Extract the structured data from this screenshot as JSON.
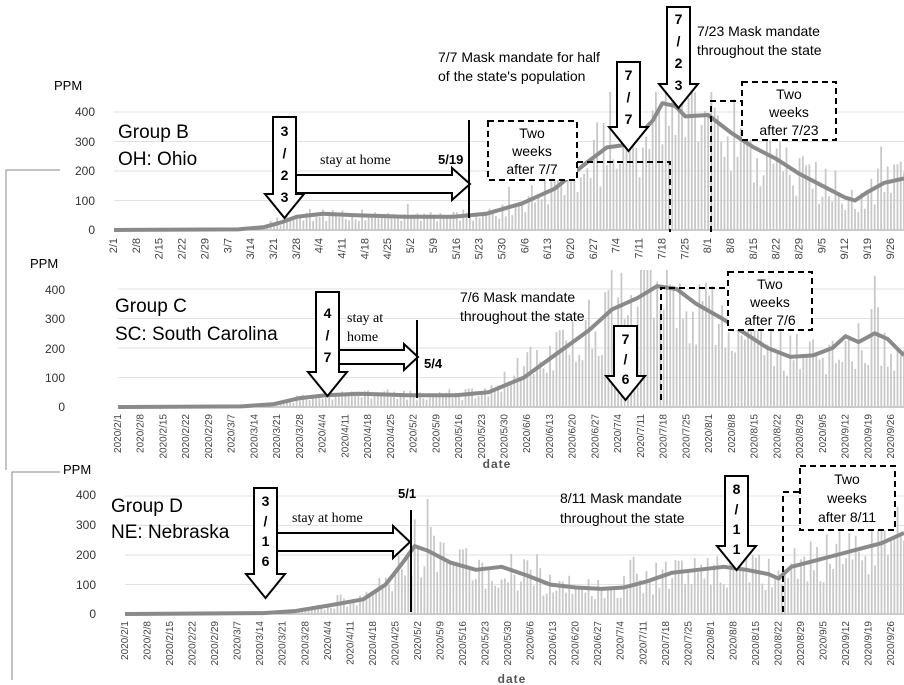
{
  "chart_data": [
    {
      "type": "bar",
      "group_label": "Group B",
      "state_label": "OH: Ohio",
      "ylabel": "PPM",
      "xlabel": "",
      "ylim": [
        0,
        450
      ],
      "yticks": [
        0,
        100,
        200,
        300,
        400
      ],
      "date_start": "2020/2/1",
      "date_end": "2020/9/30",
      "xtick_labels": [
        "2/1",
        "2/8",
        "2/15",
        "2/22",
        "2/29",
        "3/7",
        "3/14",
        "3/21",
        "3/28",
        "4/4",
        "4/11",
        "4/18",
        "4/25",
        "5/2",
        "5/9",
        "5/16",
        "5/23",
        "5/30",
        "6/6",
        "6/13",
        "6/20",
        "6/27",
        "7/4",
        "7/11",
        "7/18",
        "7/25",
        "8/1",
        "8/8",
        "8/15",
        "8/22",
        "8/29",
        "9/5",
        "9/12",
        "9/19",
        "9/26"
      ],
      "trend_points": [
        [
          "2020/2/1",
          0
        ],
        [
          "2020/3/10",
          2
        ],
        [
          "2020/3/18",
          10
        ],
        [
          "2020/3/23",
          25
        ],
        [
          "2020/3/28",
          45
        ],
        [
          "2020/4/5",
          55
        ],
        [
          "2020/4/15",
          50
        ],
        [
          "2020/4/30",
          45
        ],
        [
          "2020/5/15",
          45
        ],
        [
          "2020/5/25",
          55
        ],
        [
          "2020/6/5",
          90
        ],
        [
          "2020/6/15",
          140
        ],
        [
          "2020/6/25",
          230
        ],
        [
          "2020/7/1",
          280
        ],
        [
          "2020/7/8",
          290
        ],
        [
          "2020/7/15",
          370
        ],
        [
          "2020/7/18",
          430
        ],
        [
          "2020/7/22",
          420
        ],
        [
          "2020/7/25",
          385
        ],
        [
          "2020/8/1",
          390
        ],
        [
          "2020/8/8",
          330
        ],
        [
          "2020/8/15",
          280
        ],
        [
          "2020/8/22",
          240
        ],
        [
          "2020/8/29",
          190
        ],
        [
          "2020/9/5",
          150
        ],
        [
          "2020/9/12",
          110
        ],
        [
          "2020/9/15",
          100
        ],
        [
          "2020/9/19",
          130
        ],
        [
          "2020/9/24",
          160
        ],
        [
          "2020/9/30",
          175
        ]
      ],
      "events": [
        {
          "date": "2020/3/23",
          "arrow_text": [
            "3",
            "/",
            "2",
            "3"
          ]
        },
        {
          "date": "2020/7/7",
          "arrow_text": [
            "7",
            "/",
            "7"
          ],
          "text_lines": [
            "7/7 Mask mandate for half",
            "of the state's population"
          ]
        },
        {
          "date": "2020/7/23",
          "arrow_text": [
            "7",
            "/",
            "2",
            "3"
          ],
          "text_lines": [
            "7/23 Mask mandate",
            "throughout the state"
          ]
        }
      ],
      "stay_at_home": {
        "label": "stay at home",
        "end_label": "5/19",
        "end_date": "2020/5/19"
      },
      "boxes": [
        {
          "lines": [
            "Two",
            "weeks",
            "after 7/7"
          ]
        },
        {
          "lines": [
            "Two",
            "weeks",
            "after 7/23"
          ]
        }
      ]
    },
    {
      "type": "bar",
      "group_label": "Group C",
      "state_label": "SC: South Carolina",
      "ylabel": "PPM",
      "xlabel": "date",
      "ylim": [
        0,
        450
      ],
      "yticks": [
        0,
        100,
        200,
        300,
        400
      ],
      "date_start": "2020/2/1",
      "date_end": "2020/9/30",
      "xtick_labels": [
        "2020/2/1",
        "2020/2/8",
        "2020/2/15",
        "2020/2/22",
        "2020/2/29",
        "2020/3/7",
        "2020/3/14",
        "2020/3/21",
        "2020/3/28",
        "2020/4/4",
        "2020/4/11",
        "2020/4/18",
        "2020/4/25",
        "2020/5/2",
        "2020/5/9",
        "2020/5/16",
        "2020/5/23",
        "2020/5/30",
        "2020/6/6",
        "2020/6/13",
        "2020/6/20",
        "2020/6/27",
        "2020/7/4",
        "2020/7/11",
        "2020/7/18",
        "2020/7/25",
        "2020/8/1",
        "2020/8/8",
        "2020/8/15",
        "2020/8/22",
        "2020/8/29",
        "2020/9/5",
        "2020/9/12",
        "2020/9/19",
        "2020/9/26"
      ],
      "trend_points": [
        [
          "2020/2/1",
          0
        ],
        [
          "2020/3/10",
          2
        ],
        [
          "2020/3/20",
          10
        ],
        [
          "2020/3/28",
          30
        ],
        [
          "2020/4/5",
          40
        ],
        [
          "2020/4/15",
          45
        ],
        [
          "2020/4/30",
          40
        ],
        [
          "2020/5/15",
          40
        ],
        [
          "2020/5/25",
          50
        ],
        [
          "2020/6/5",
          100
        ],
        [
          "2020/6/15",
          180
        ],
        [
          "2020/6/25",
          260
        ],
        [
          "2020/7/2",
          330
        ],
        [
          "2020/7/10",
          370
        ],
        [
          "2020/7/16",
          410
        ],
        [
          "2020/7/22",
          400
        ],
        [
          "2020/7/28",
          350
        ],
        [
          "2020/8/5",
          300
        ],
        [
          "2020/8/12",
          250
        ],
        [
          "2020/8/19",
          200
        ],
        [
          "2020/8/26",
          170
        ],
        [
          "2020/9/2",
          175
        ],
        [
          "2020/9/8",
          200
        ],
        [
          "2020/9/12",
          240
        ],
        [
          "2020/9/16",
          220
        ],
        [
          "2020/9/21",
          250
        ],
        [
          "2020/9/25",
          230
        ],
        [
          "2020/9/30",
          175
        ]
      ],
      "events": [
        {
          "date": "2020/4/7",
          "arrow_text": [
            "4",
            "/",
            "7"
          ]
        },
        {
          "date": "2020/7/6",
          "arrow_text": [
            "7",
            "/",
            "6"
          ],
          "text_lines": [
            "7/6 Mask mandate",
            "throughout the state"
          ]
        }
      ],
      "stay_at_home": {
        "label": "stay at home",
        "end_label": "5/4",
        "end_date": "2020/5/4"
      },
      "boxes": [
        {
          "lines": [
            "Two",
            "weeks",
            "after 7/6"
          ]
        }
      ]
    },
    {
      "type": "bar",
      "group_label": "Group D",
      "state_label": "NE: Nebraska",
      "ylabel": "PPM",
      "xlabel": "date",
      "ylim": [
        0,
        450
      ],
      "yticks": [
        0,
        100,
        200,
        300,
        400
      ],
      "date_start": "2020/2/1",
      "date_end": "2020/9/30",
      "xtick_labels": [
        "2020/2/1",
        "2020/2/8",
        "2020/2/15",
        "2020/2/22",
        "2020/2/29",
        "2020/3/7",
        "2020/3/14",
        "2020/3/21",
        "2020/3/28",
        "2020/4/4",
        "2020/4/11",
        "2020/4/18",
        "2020/4/25",
        "2020/5/2",
        "2020/5/9",
        "2020/5/16",
        "2020/5/23",
        "2020/5/30",
        "2020/6/6",
        "2020/6/13",
        "2020/6/20",
        "2020/6/27",
        "2020/7/4",
        "2020/7/11",
        "2020/7/18",
        "2020/7/25",
        "2020/8/1",
        "2020/8/8",
        "2020/8/15",
        "2020/8/22",
        "2020/8/29",
        "2020/9/5",
        "2020/9/12",
        "2020/9/19",
        "2020/9/26"
      ],
      "trend_points": [
        [
          "2020/2/1",
          0
        ],
        [
          "2020/3/15",
          3
        ],
        [
          "2020/3/25",
          10
        ],
        [
          "2020/4/5",
          30
        ],
        [
          "2020/4/15",
          50
        ],
        [
          "2020/4/22",
          100
        ],
        [
          "2020/4/27",
          170
        ],
        [
          "2020/5/1",
          230
        ],
        [
          "2020/5/5",
          215
        ],
        [
          "2020/5/12",
          175
        ],
        [
          "2020/5/20",
          150
        ],
        [
          "2020/5/28",
          160
        ],
        [
          "2020/6/5",
          130
        ],
        [
          "2020/6/12",
          100
        ],
        [
          "2020/6/20",
          90
        ],
        [
          "2020/6/28",
          85
        ],
        [
          "2020/7/5",
          90
        ],
        [
          "2020/7/12",
          110
        ],
        [
          "2020/7/20",
          140
        ],
        [
          "2020/7/28",
          150
        ],
        [
          "2020/8/5",
          160
        ],
        [
          "2020/8/12",
          150
        ],
        [
          "2020/8/19",
          135
        ],
        [
          "2020/8/22",
          120
        ],
        [
          "2020/8/26",
          160
        ],
        [
          "2020/9/2",
          180
        ],
        [
          "2020/9/9",
          200
        ],
        [
          "2020/9/16",
          220
        ],
        [
          "2020/9/23",
          240
        ],
        [
          "2020/9/30",
          275
        ]
      ],
      "events": [
        {
          "date": "2020/3/16",
          "arrow_text": [
            "3",
            "/",
            "1",
            "6"
          ]
        },
        {
          "date": "2020/8/11",
          "arrow_text": [
            "8",
            "/",
            "1",
            "1"
          ],
          "text_lines": [
            "8/11 Mask mandate",
            "throughout the state"
          ]
        }
      ],
      "stay_at_home": {
        "label": "stay at home",
        "end_label": "5/1",
        "end_date": "2020/5/1"
      },
      "boxes": [
        {
          "lines": [
            "Two",
            "weeks",
            "after 8/11"
          ]
        }
      ]
    }
  ]
}
